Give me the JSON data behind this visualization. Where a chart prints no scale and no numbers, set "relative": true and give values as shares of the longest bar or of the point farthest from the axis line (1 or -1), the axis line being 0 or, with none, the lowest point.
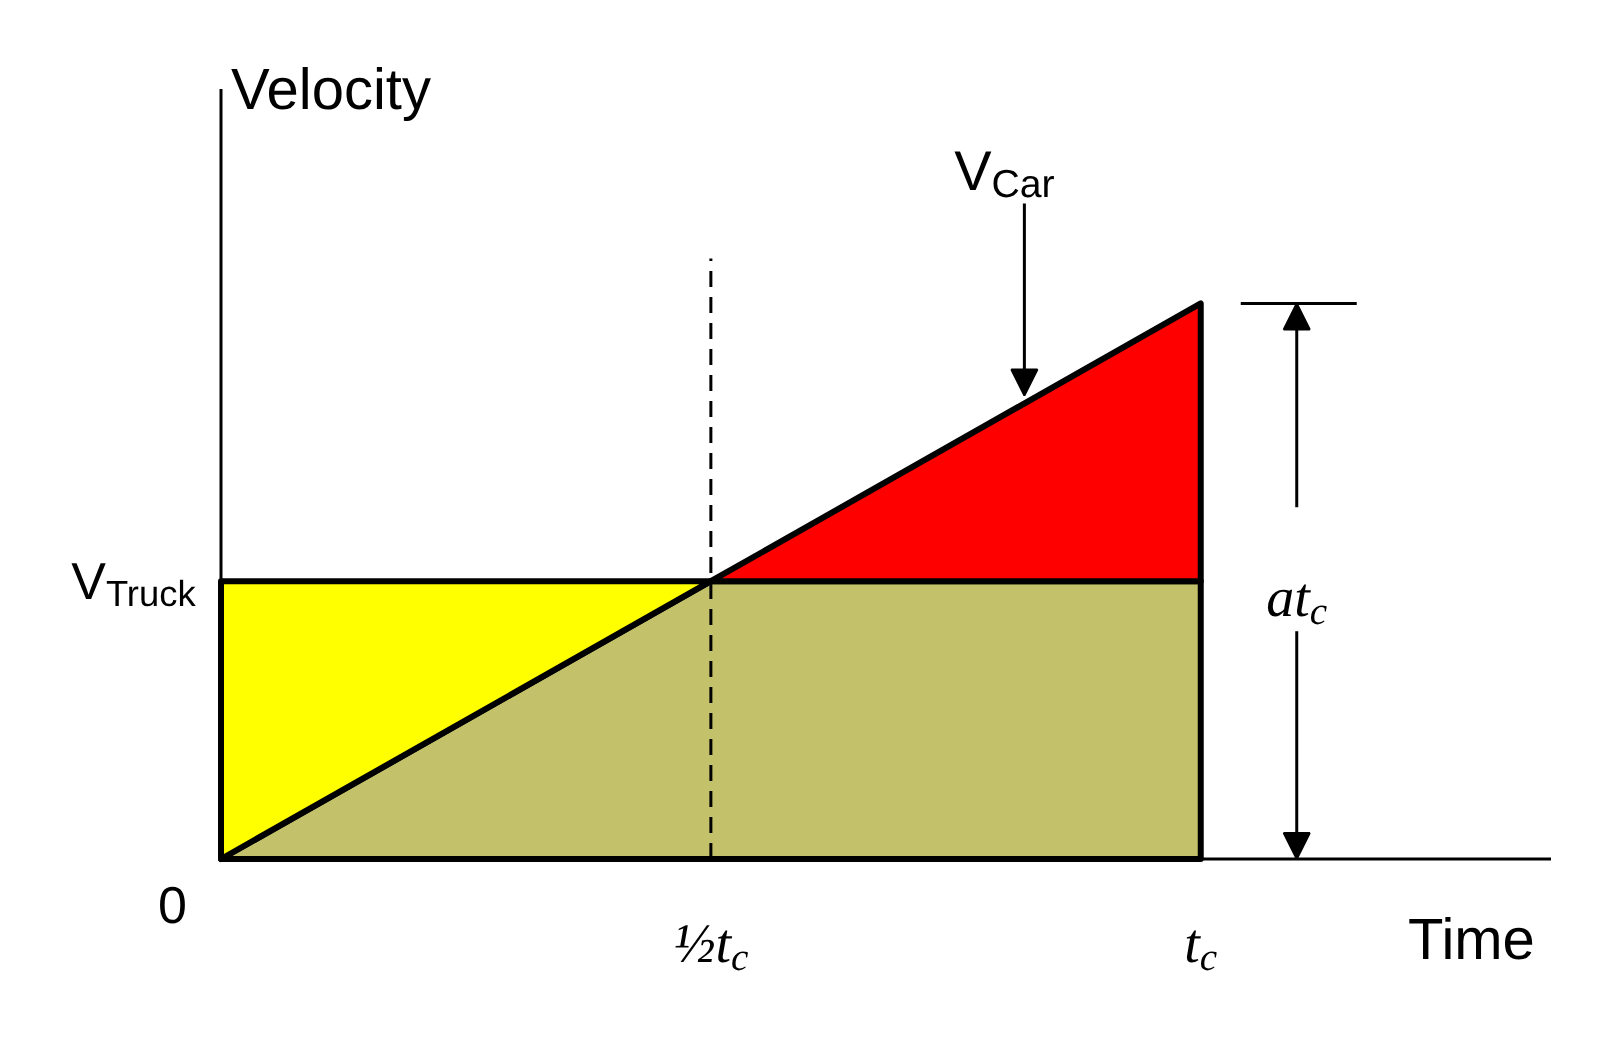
{
  "chart_data": {
    "type": "area",
    "stacked": true,
    "relative": true,
    "xlabel": "Time",
    "ylabel": "Velocity",
    "categories": [
      null,
      "½t$_{c}$",
      "t$_{c}$"
    ],
    "series": [
      {
        "color": "#c3c16a",
        "values": [
          0,
          0.5,
          0.5
        ]
      },
      {
        "color": "#ffff00",
        "values": [
          0.5,
          0,
          null
        ]
      },
      {
        "color": "#ff0000",
        "values": [
          null,
          0,
          0.5
        ]
      }
    ],
    "ref_lines": [
      {
        "axis": "x",
        "value": "½t$_{c}$",
        "color": "#000000",
        "line_style": "dashed"
      }
    ],
    "annotations": [
      "0",
      "V$_{Truck}$",
      "V$_{Car}$",
      "at$_{c}$"
    ],
    "grid": false
  }
}
